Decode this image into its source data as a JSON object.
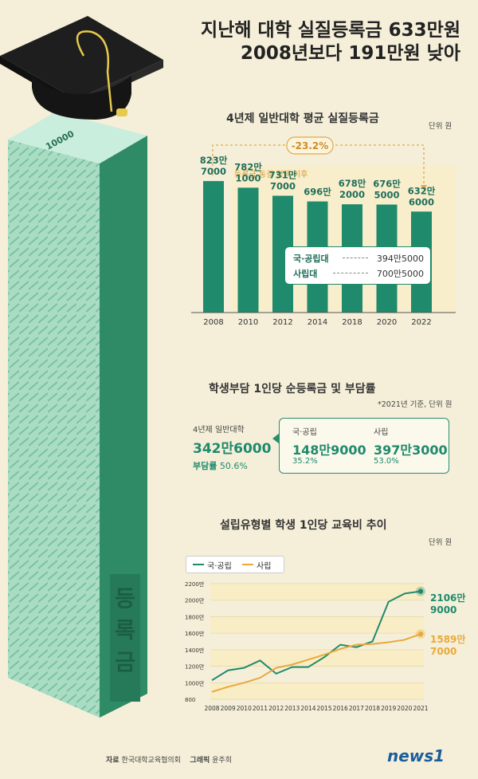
{
  "headline": {
    "line1": "지난해 대학 실질등록금 633만원",
    "line2": "2008년보다 191만원 낮아"
  },
  "illustration": {
    "money_label": "10000",
    "stack_label": "등록금"
  },
  "bar_section": {
    "title": "4년제 일반대학 평균 실질등록금",
    "unit": "단위 원",
    "change_badge": "-23.2%",
    "freeze_label": "등록금 동결 정책 이후",
    "breakdown": [
      {
        "name": "국·공립대",
        "value": "394만5000"
      },
      {
        "name": "사립대",
        "value": "700만5000"
      }
    ]
  },
  "burden_section": {
    "title": "학생부담 1인당 순등록금 및 부담률",
    "note": "*2021년 기준, 단위 원",
    "overall": {
      "label": "4년제 일반대학",
      "value": "342만6000",
      "rate_label": "부담률",
      "rate": "50.6%"
    },
    "public": {
      "label": "국·공립",
      "value": "148만9000",
      "rate": "35.2%"
    },
    "private": {
      "label": "사립",
      "value": "397만3000",
      "rate": "53.0%"
    }
  },
  "line_section": {
    "title": "설립유형별 학생 1인당 교육비 추이",
    "unit": "단위 원",
    "legend": [
      {
        "name": "국·공립",
        "color": "#1f8a6c"
      },
      {
        "name": "사립",
        "color": "#e9a93a"
      }
    ],
    "end_labels": [
      {
        "line1": "2106만",
        "line2": "9000"
      },
      {
        "line1": "1589만",
        "line2": "7000"
      }
    ]
  },
  "footer": {
    "source_label": "자료",
    "source": "한국대학교육협의회",
    "graphic_label": "그래픽",
    "graphic": "윤주희",
    "logo": "news1"
  },
  "chart_data": [
    {
      "type": "bar",
      "title": "4년제 일반대학 평균 실질등록금",
      "categories": [
        "2008",
        "2010",
        "2012",
        "2014",
        "2018",
        "2020",
        "2022"
      ],
      "values": [
        8237000,
        7821000,
        7317000,
        6960000,
        6782000,
        6765000,
        6326000
      ],
      "value_labels": [
        [
          "823만",
          "7000"
        ],
        [
          "782만",
          "1000"
        ],
        [
          "731만",
          "7000"
        ],
        [
          "696만",
          ""
        ],
        [
          "678만",
          "2000"
        ],
        [
          "676만",
          "5000"
        ],
        [
          "632만",
          "6000"
        ]
      ],
      "bar_color": "#1f8a6c",
      "ylim": [
        0,
        9000000
      ],
      "grid": false
    },
    {
      "type": "line",
      "title": "설립유형별 학생 1인당 교육비 추이",
      "x": [
        "2008",
        "2009",
        "2010",
        "2011",
        "2012",
        "2013",
        "2014",
        "2015",
        "2016",
        "2017",
        "2018",
        "2019",
        "2020",
        "2021"
      ],
      "yticks": [
        "800",
        "1000만",
        "1200만",
        "1400만",
        "1600만",
        "1800만",
        "2000만",
        "2200만"
      ],
      "ylim": [
        800,
        2200
      ],
      "series": [
        {
          "name": "국·공립",
          "color": "#1f8a6c",
          "values": [
            1030,
            1150,
            1180,
            1270,
            1110,
            1190,
            1190,
            1310,
            1460,
            1430,
            1500,
            1980,
            2080,
            2107
          ]
        },
        {
          "name": "사립",
          "color": "#e9a93a",
          "values": [
            890,
            950,
            1000,
            1060,
            1180,
            1220,
            1280,
            1340,
            1410,
            1460,
            1470,
            1490,
            1520,
            1590
          ]
        }
      ],
      "legend_position": "top-left"
    }
  ]
}
